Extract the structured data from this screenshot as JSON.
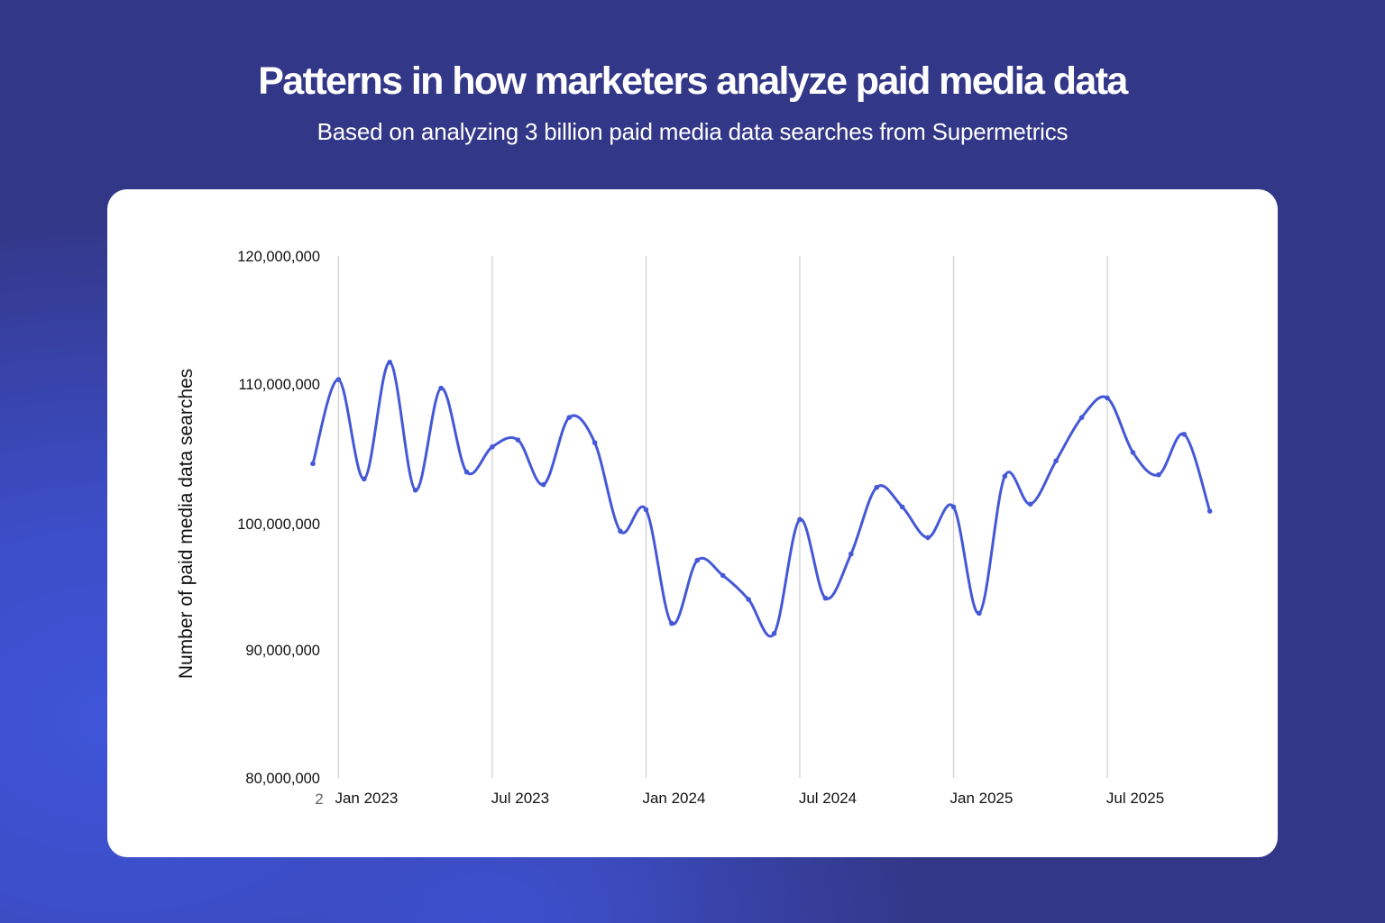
{
  "header": {
    "title": "Patterns in how marketers analyze paid media data",
    "subtitle": "Based on analyzing 3 billion paid media data searches from Supermetrics"
  },
  "colors": {
    "background_navy": "#333787",
    "background_blue": "#3f55d8",
    "card": "#ffffff",
    "line": "#4558d6",
    "gridline": "#d0d0d0",
    "text_dark": "#111111",
    "text_light": "#ffffff"
  },
  "chart_data": {
    "type": "line",
    "title": "Patterns in how marketers analyze paid media data",
    "subtitle": "Based on analyzing 3 billion paid media data searches from Supermetrics",
    "xlabel": "",
    "ylabel": "Number of paid media data searches",
    "ylim": [
      80000000,
      120000000
    ],
    "yticks": [
      120000000,
      110000000,
      100000000,
      90000000,
      80000000
    ],
    "ytick_labels": [
      "120,000,000",
      "110,000,000",
      "100,000,000",
      "90,000,000",
      "80,000,000"
    ],
    "xtick_labels": [
      "2",
      "Jan 2023",
      "Jul 2023",
      "Jan 2024",
      "Jul 2024",
      "Jan 2025",
      "Jul 2025"
    ],
    "xtick_months": [
      "Dec 2022",
      "Jan 2023",
      "Jul 2023",
      "Jan 2024",
      "Jul 2024",
      "Jan 2025",
      "Jul 2025"
    ],
    "grid": "vertical",
    "legend": "none",
    "curve": "smooth",
    "markers": true,
    "x": [
      "Dec 2022",
      "Jan 2023",
      "Feb 2023",
      "Mar 2023",
      "Apr 2023",
      "May 2023",
      "Jun 2023",
      "Jul 2023",
      "Aug 2023",
      "Sep 2023",
      "Oct 2023",
      "Nov 2023",
      "Dec 2023",
      "Jan 2024",
      "Feb 2024",
      "Mar 2024",
      "Apr 2024",
      "May 2024",
      "Jun 2024",
      "Jul 2024",
      "Aug 2024",
      "Sep 2024",
      "Oct 2024",
      "Nov 2024",
      "Dec 2024",
      "Jan 2025",
      "Feb 2025",
      "Mar 2025",
      "Apr 2025",
      "May 2025",
      "Jun 2025",
      "Jul 2025",
      "Aug 2025",
      "Sep 2025",
      "Oct 2025",
      "Nov 2025"
    ],
    "series": [
      {
        "name": "Paid media data searches",
        "values": [
          104300000,
          110350000,
          103200000,
          111700000,
          102400000,
          109700000,
          103700000,
          105500000,
          106000000,
          102800000,
          107600000,
          105800000,
          99400000,
          101000000,
          92100000,
          97100000,
          95900000,
          94000000,
          91300000,
          100300000,
          94100000,
          97600000,
          102600000,
          101200000,
          98900000,
          101200000,
          92900000,
          103400000,
          101400000,
          104500000,
          107600000,
          109000000,
          105100000,
          103500000,
          106400000,
          100900000
        ]
      }
    ]
  }
}
